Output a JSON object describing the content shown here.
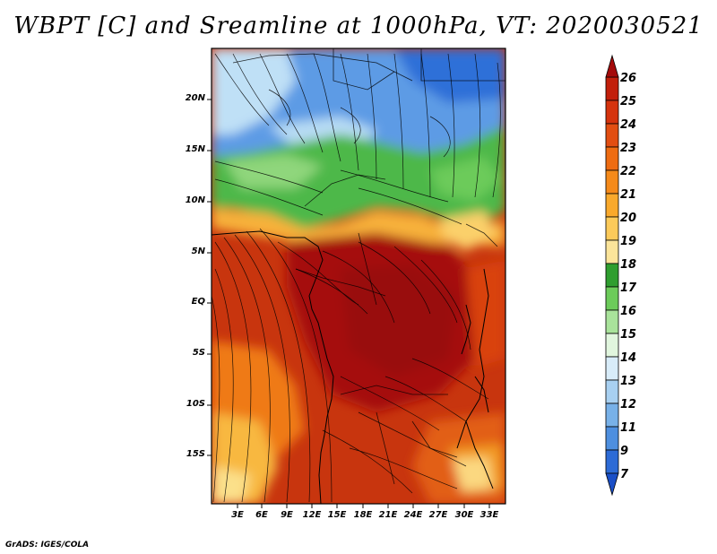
{
  "title": "WBPT [C] and Sreamline at 1000hPa, VT: 2020030521",
  "footer": "GrADS: IGES/COLA",
  "map": {
    "lat_ticks": [
      "20N",
      "15N",
      "10N",
      "5N",
      "EQ",
      "5S",
      "10S",
      "15S"
    ],
    "lon_ticks": [
      "3E",
      "6E",
      "9E",
      "12E",
      "15E",
      "18E",
      "21E",
      "24E",
      "27E",
      "30E",
      "33E"
    ]
  },
  "colorbar": {
    "labels": [
      "26",
      "25",
      "24",
      "23",
      "22",
      "21",
      "20",
      "19",
      "18",
      "17",
      "16",
      "15",
      "14",
      "13",
      "12",
      "11",
      "9",
      "7"
    ],
    "colors": [
      "#a40a0a",
      "#c21f0b",
      "#d5330d",
      "#e24e12",
      "#ee6c12",
      "#f58a1a",
      "#f9a92c",
      "#fcca5a",
      "#fbe49a",
      "#2f9e2f",
      "#6ccb5a",
      "#a9e39b",
      "#e1f6de",
      "#d8ecf9",
      "#a8d0f1",
      "#78b1e8",
      "#4e8fdf",
      "#2d6bd6",
      "#1a4fc7"
    ]
  }
}
